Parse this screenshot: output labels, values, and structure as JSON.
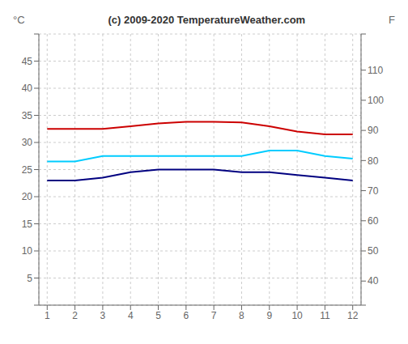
{
  "chart_data": {
    "type": "line",
    "title": "(c) 2009-2020 TemperatureWeather.com",
    "ylabel": "°C",
    "y2label": "F",
    "x": [
      1,
      2,
      3,
      4,
      5,
      6,
      7,
      8,
      9,
      10,
      11,
      12
    ],
    "series": [
      {
        "color": "#cc0000",
        "values": [
          32.5,
          32.5,
          32.5,
          33.0,
          33.5,
          33.8,
          33.8,
          33.7,
          33.0,
          32.0,
          31.5,
          31.5
        ]
      },
      {
        "color": "#00ccff",
        "values": [
          26.5,
          26.5,
          27.5,
          27.5,
          27.5,
          27.5,
          27.5,
          27.5,
          28.5,
          28.5,
          27.5,
          27.0
        ]
      },
      {
        "color": "#000080",
        "values": [
          23.0,
          23.0,
          23.5,
          24.5,
          25.0,
          25.0,
          25.0,
          24.5,
          24.5,
          24.0,
          23.5,
          23.0
        ]
      }
    ],
    "xlim": [
      0.7,
      12.3
    ],
    "xticks": [
      1,
      2,
      3,
      4,
      5,
      6,
      7,
      8,
      9,
      10,
      11,
      12
    ],
    "ylim": [
      0,
      50
    ],
    "yticks": [
      {
        "value": 0,
        "label": ""
      },
      5,
      10,
      15,
      20,
      25,
      30,
      35,
      40,
      45,
      {
        "value": 50,
        "label": ""
      }
    ],
    "y2lim": [
      32,
      122
    ],
    "y2ticks": [
      {
        "value": 32,
        "label": ""
      },
      40,
      50,
      60,
      70,
      80,
      90,
      100,
      110,
      {
        "value": 122,
        "label": ""
      }
    ],
    "grid": true
  }
}
